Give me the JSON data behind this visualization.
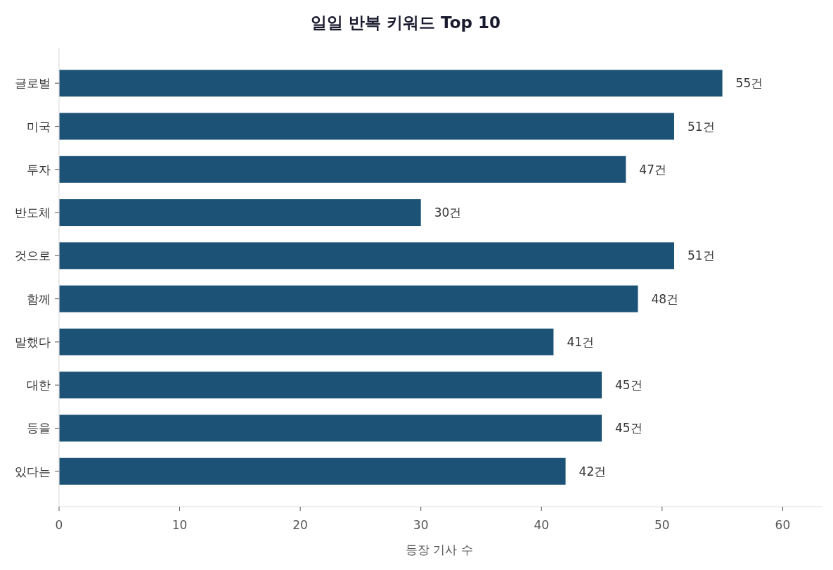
{
  "chart_data": {
    "type": "bar",
    "orientation": "horizontal",
    "title": "일일 반복 키워드 Top 10",
    "xlabel": "등장 기사 수",
    "categories": [
      "글로벌",
      "미국",
      "투자",
      "반도체",
      "것으로",
      "함께",
      "말했다",
      "대한",
      "등을",
      "있다는"
    ],
    "values": [
      55,
      51,
      47,
      30,
      51,
      48,
      41,
      45,
      45,
      42
    ],
    "value_labels": [
      "55건",
      "51건",
      "47건",
      "30건",
      "51건",
      "48건",
      "41건",
      "45건",
      "45건",
      "42건"
    ],
    "color": "#1b5276",
    "xlim": [
      0,
      63.3
    ],
    "xticks": [
      0,
      10,
      20,
      30,
      40,
      50,
      60
    ],
    "grid": false
  }
}
